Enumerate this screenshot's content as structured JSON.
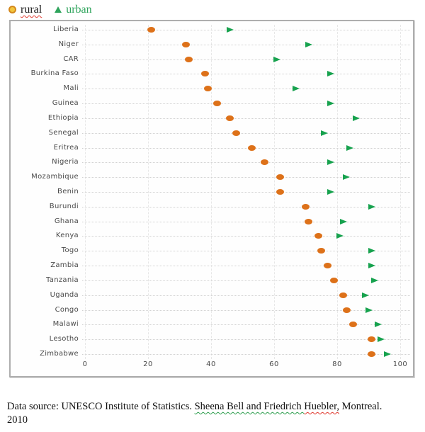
{
  "legend": {
    "rural": {
      "label": "rural"
    },
    "urban": {
      "label": "urban"
    }
  },
  "chart_data": {
    "type": "scatter",
    "subtype": "horizontal-dot-plot",
    "title": "",
    "xlabel": "",
    "ylabel": "",
    "xlim": [
      0,
      100
    ],
    "xticks": [
      0,
      20,
      40,
      60,
      80,
      100
    ],
    "grid": true,
    "legend_position": "top-left",
    "categories": [
      "Liberia",
      "Niger",
      "CAR",
      "Burkina Faso",
      "Mali",
      "Guinea",
      "Ethiopia",
      "Senegal",
      "Eritrea",
      "Nigeria",
      "Mozambique",
      "Benin",
      "Burundi",
      "Ghana",
      "Kenya",
      "Togo",
      "Zambia",
      "Tanzania",
      "Uganda",
      "Congo",
      "Malawi",
      "Lesotho",
      "Zimbabwe"
    ],
    "series": [
      {
        "name": "rural",
        "marker": "circle",
        "color": "#dd7119",
        "values": [
          21,
          32,
          33,
          38,
          39,
          42,
          46,
          48,
          53,
          57,
          62,
          62,
          70,
          71,
          74,
          75,
          77,
          79,
          82,
          83,
          85,
          91,
          91
        ]
      },
      {
        "name": "urban",
        "marker": "triangle-right",
        "color": "#17a24e",
        "values": [
          46,
          71,
          61,
          78,
          67,
          78,
          86,
          76,
          84,
          78,
          83,
          78,
          91,
          82,
          81,
          91,
          91,
          92,
          89,
          90,
          93,
          94,
          96
        ]
      }
    ]
  },
  "caption": {
    "prefix": "Data source: UNESCO Institute of Statistics. ",
    "names_green": "Sheena Bell and Friedrich ",
    "name_red": "Huebler,",
    "suffix": " Montreal.",
    "line2": "2010"
  },
  "colors": {
    "rural_marker": "#dd7119",
    "urban_marker": "#17a24e",
    "urban_legend_text": "#2fa45c",
    "squiggle_red": "#e03a2f",
    "squiggle_green": "#2e9e4f",
    "frame_border": "#aeaeae"
  }
}
